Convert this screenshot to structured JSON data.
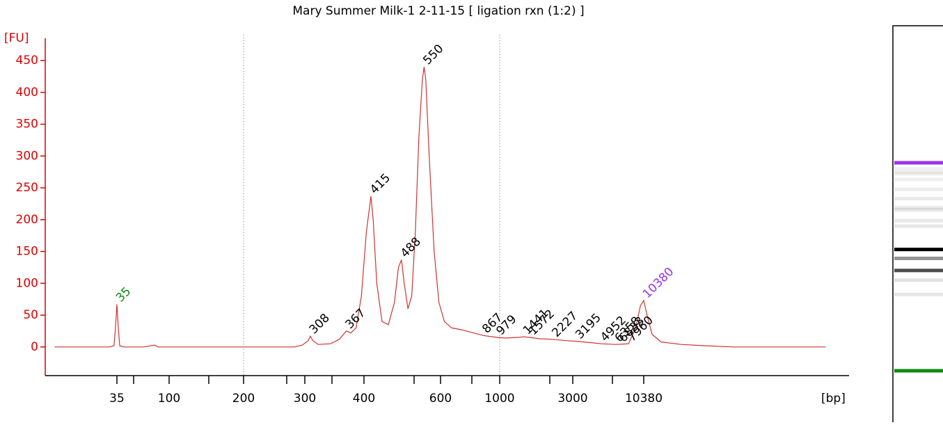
{
  "chart_data": {
    "type": "line",
    "title": "Mary Summer Milk-1 2-11-15  [ ligation rxn (1:2) ]",
    "y_label": "[FU]",
    "x_label": "[bp]",
    "xlim": [
      8,
      300000
    ],
    "xticks": [
      35,
      100,
      200,
      300,
      400,
      600,
      1000,
      3000,
      10380
    ],
    "ylim": [
      -45,
      485
    ],
    "yticks": [
      0,
      50,
      100,
      150,
      200,
      250,
      300,
      350,
      400,
      450
    ],
    "dotted_lines": [
      200,
      1000
    ],
    "trace": {
      "color": "#cc3333",
      "x": [
        10,
        30,
        33,
        34,
        35,
        36,
        37,
        40,
        60,
        75,
        80,
        200,
        280,
        295,
        305,
        308,
        312,
        320,
        340,
        355,
        367,
        375,
        385,
        395,
        405,
        415,
        420,
        428,
        440,
        455,
        470,
        480,
        488,
        495,
        505,
        515,
        525,
        535,
        545,
        550,
        555,
        565,
        580,
        595,
        620,
        660,
        720,
        800,
        867,
        979,
        1100,
        1300,
        1441,
        1572,
        1800,
        2227,
        2700,
        3195,
        4000,
        4952,
        6358,
        7960,
        9000,
        9800,
        10380,
        11000,
        12000,
        14000,
        20000,
        30000,
        50000,
        250000
      ],
      "values": [
        0,
        0,
        2,
        30,
        67,
        30,
        2,
        0,
        0,
        3,
        0,
        0,
        0,
        3,
        10,
        17,
        10,
        4,
        5,
        12,
        25,
        22,
        30,
        80,
        180,
        237,
        200,
        100,
        40,
        35,
        70,
        125,
        137,
        100,
        60,
        80,
        180,
        330,
        420,
        440,
        420,
        300,
        150,
        70,
        40,
        30,
        27,
        22,
        18,
        15,
        14,
        15,
        16,
        15,
        13,
        12,
        10,
        9,
        7,
        5,
        4,
        5,
        30,
        65,
        73,
        50,
        20,
        8,
        4,
        2,
        0,
        0
      ]
    },
    "peaks": {
      "x": [
        35,
        308,
        367,
        415,
        488,
        550,
        867,
        979,
        1441,
        1572,
        2227,
        3195,
        4952,
        6358,
        6833,
        7960,
        10380
      ],
      "values": [
        67,
        17,
        25,
        237,
        137,
        440,
        18,
        15,
        16,
        15,
        12,
        9,
        5,
        4,
        4,
        5,
        73
      ],
      "colors": [
        "#118811",
        "#000000",
        "#000000",
        "#000000",
        "#000000",
        "#000000",
        "#000000",
        "#000000",
        "#000000",
        "#000000",
        "#000000",
        "#000000",
        "#000000",
        "#000000",
        "#000000",
        "#000000",
        "#9933ee"
      ]
    }
  }
}
